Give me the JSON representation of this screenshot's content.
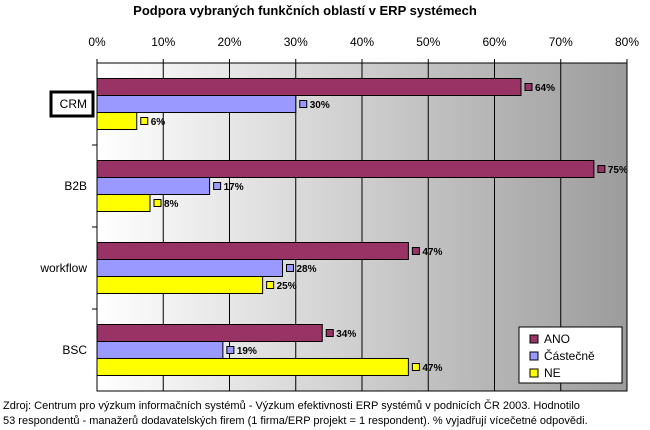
{
  "chart_data": {
    "type": "bar",
    "orientation": "horizontal",
    "title": "Podpora vybraných funkčních oblastí v ERP systémech",
    "categories": [
      "CRM",
      "B2B",
      "workflow",
      "BSC"
    ],
    "highlighted_category": "CRM",
    "series": [
      {
        "name": "ANO",
        "values": [
          64,
          75,
          47,
          34
        ],
        "labels": [
          "64%",
          "75%",
          "47%",
          "34%"
        ],
        "color": "#993366"
      },
      {
        "name": "Částečně",
        "values": [
          30,
          17,
          28,
          19
        ],
        "labels": [
          "30%",
          "17%",
          "28%",
          "19%"
        ],
        "color": "#9999ff"
      },
      {
        "name": "NE",
        "values": [
          6,
          8,
          25,
          47
        ],
        "labels": [
          "6%",
          "8%",
          "25%",
          "47%"
        ],
        "color": "#ffff00"
      }
    ],
    "xlim": [
      0,
      80
    ],
    "x_ticks": [
      "0%",
      "10%",
      "20%",
      "30%",
      "40%",
      "50%",
      "60%",
      "70%",
      "80%"
    ],
    "x_tick_values": [
      0,
      10,
      20,
      30,
      40,
      50,
      60,
      70,
      80
    ],
    "grid": true,
    "legend_position": "bottom-right",
    "plot_background": "gray-gradient"
  },
  "source_note": {
    "line1": "Zdroj: Centrum pro výzkum informačních systémů - Výzkum efektivnosti ERP systémů v podnicích ČR 2003. Hodnotilo",
    "line2": "53 respondentů - manažerů dodavatelských firem (1 firma/ERP projekt = 1 respondent). % vyjadřují vícečetné odpovědi."
  }
}
